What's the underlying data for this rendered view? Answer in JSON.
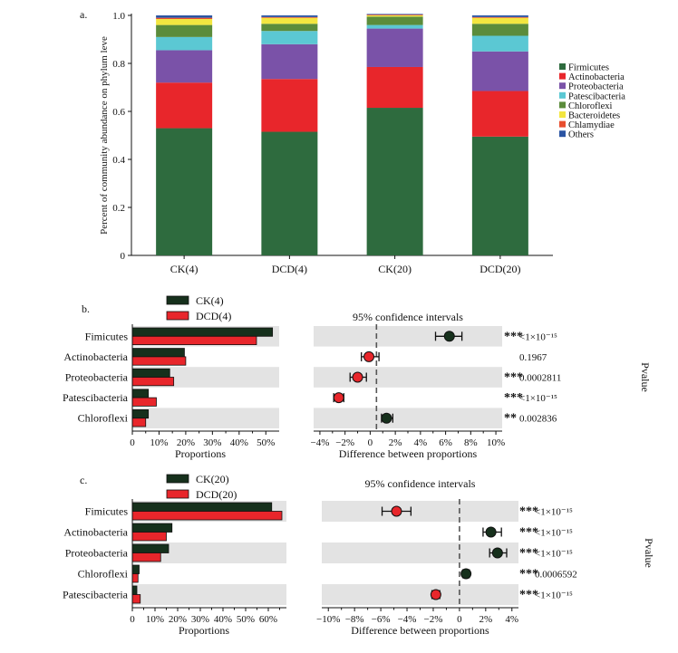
{
  "chart_data": [
    {
      "panel": "a.",
      "type": "bar",
      "stacked": true,
      "ylabel": "Percent of community abundance on phylum leve",
      "ylim": [
        0,
        1.0
      ],
      "yticks": [
        "0",
        "0.2",
        "0.4",
        "0.6",
        "0.8",
        "1.0"
      ],
      "categories": [
        "CK(4)",
        "DCD(4)",
        "CK(20)",
        "DCD(20)"
      ],
      "series": [
        {
          "name": "Firmicutes",
          "color": "#2e6b3e",
          "values": [
            0.53,
            0.515,
            0.615,
            0.495
          ]
        },
        {
          "name": "Actinobacteria",
          "color": "#e8262b",
          "values": [
            0.19,
            0.22,
            0.17,
            0.19
          ]
        },
        {
          "name": "Proteobacteria",
          "color": "#7a52a8",
          "values": [
            0.135,
            0.145,
            0.16,
            0.165
          ]
        },
        {
          "name": "Patescibacteria",
          "color": "#5bc8d3",
          "values": [
            0.055,
            0.055,
            0.015,
            0.065
          ]
        },
        {
          "name": "Chloroflexi",
          "color": "#5b8c3b",
          "values": [
            0.05,
            0.03,
            0.035,
            0.05
          ]
        },
        {
          "name": "Bacteroidetes",
          "color": "#f3e640",
          "values": [
            0.025,
            0.025,
            0.005,
            0.025
          ]
        },
        {
          "name": "Chlamydiae",
          "color": "#e84e2e",
          "values": [
            0.005,
            0.003,
            0.003,
            0.003
          ]
        },
        {
          "name": "Others",
          "color": "#2b54a3",
          "values": [
            0.01,
            0.007,
            0.003,
            0.007
          ]
        }
      ],
      "legend_position": "right"
    },
    {
      "panel": "b.",
      "type": "bar",
      "orientation": "horizontal",
      "categories": [
        "Fimicutes",
        "Actinobacteria",
        "Proteobacteria",
        "Patescibacteria",
        "Chloroflexi"
      ],
      "series": [
        {
          "name": "CK(4)",
          "color": "#16301c",
          "values": [
            52.5,
            19.5,
            14.0,
            6.0,
            6.0
          ]
        },
        {
          "name": "DCD(4)",
          "color": "#e8262b",
          "values": [
            46.5,
            20.0,
            15.5,
            9.0,
            5.0
          ]
        }
      ],
      "xlabel": "Proportions",
      "xlim": [
        0,
        55
      ],
      "xticks": [
        "0",
        "10%",
        "20%",
        "30%",
        "40%",
        "50%"
      ]
    },
    {
      "panel": "b.",
      "type": "scatter",
      "subtype": "confidence-interval",
      "title": "95% confidence intervals",
      "xlabel": "Difference between proportions",
      "xlim": [
        -5,
        10
      ],
      "xticks": [
        "−4%",
        "−2%",
        "0",
        "2%",
        "4%",
        "6%",
        "8%",
        "10%"
      ],
      "categories": [
        "Fimicutes",
        "Actinobacteria",
        "Proteobacteria",
        "Patescibacteria",
        "Chloroflexi"
      ],
      "points": [
        {
          "estimate": 5.8,
          "lower": 4.7,
          "upper": 6.8,
          "color": "#16301c"
        },
        {
          "estimate": -0.6,
          "lower": -1.2,
          "upper": 0.2,
          "color": "#e8262b"
        },
        {
          "estimate": -1.5,
          "lower": -2.1,
          "upper": -0.8,
          "color": "#e8262b"
        },
        {
          "estimate": -3.0,
          "lower": -3.4,
          "upper": -2.6,
          "color": "#e8262b"
        },
        {
          "estimate": 0.8,
          "lower": 0.4,
          "upper": 1.3,
          "color": "#16301c"
        }
      ],
      "significance": [
        "***",
        "",
        "***",
        "***",
        "**"
      ],
      "pvalues": [
        "<1×10⁻¹⁵",
        "0.1967",
        "0.0002811",
        "<1×10⁻¹⁵",
        "0.002836"
      ],
      "pvalue_label": "Pvalue"
    },
    {
      "panel": "c.",
      "type": "bar",
      "orientation": "horizontal",
      "categories": [
        "Fimicutes",
        "Actinobacteria",
        "Proteobacteria",
        "Chloroflexi",
        "Patescibacteria"
      ],
      "series": [
        {
          "name": "CK(20)",
          "color": "#16301c",
          "values": [
            61.5,
            17.5,
            16.0,
            3.0,
            2.0
          ]
        },
        {
          "name": "DCD(20)",
          "color": "#e8262b",
          "values": [
            66.0,
            15.0,
            12.5,
            2.5,
            3.5
          ]
        }
      ],
      "xlabel": "Proportions",
      "xlim": [
        0,
        68
      ],
      "xticks": [
        "0",
        "10%",
        "20%",
        "30%",
        "40%",
        "50%",
        "60%"
      ]
    },
    {
      "panel": "c.",
      "type": "scatter",
      "subtype": "confidence-interval",
      "title": "95% confidence intervals",
      "xlabel": "Difference between proportions",
      "xlim": [
        -10.5,
        4.5
      ],
      "xticks": [
        "−10%",
        "−8%",
        "−6%",
        "−4%",
        "−2%",
        "0",
        "2%",
        "4%"
      ],
      "categories": [
        "Fimicutes",
        "Actinobacteria",
        "Proteobacteria",
        "Chloroflexi",
        "Patescibacteria"
      ],
      "points": [
        {
          "estimate": -4.8,
          "lower": -5.9,
          "upper": -3.7,
          "color": "#e8262b"
        },
        {
          "estimate": 2.4,
          "lower": 1.8,
          "upper": 3.2,
          "color": "#16301c"
        },
        {
          "estimate": 2.9,
          "lower": 2.3,
          "upper": 3.6,
          "color": "#16301c"
        },
        {
          "estimate": 0.5,
          "lower": 0.25,
          "upper": 0.75,
          "color": "#16301c"
        },
        {
          "estimate": -1.8,
          "lower": -2.1,
          "upper": -1.5,
          "color": "#e8262b"
        }
      ],
      "significance": [
        "***",
        "***",
        "***",
        "***",
        "***"
      ],
      "pvalues": [
        "<1×10⁻¹⁵",
        "<1×10⁻¹⁵",
        "<1×10⁻¹⁵",
        "0.0006592",
        "<1×10⁻¹⁵"
      ],
      "pvalue_label": "Pvalue"
    }
  ]
}
